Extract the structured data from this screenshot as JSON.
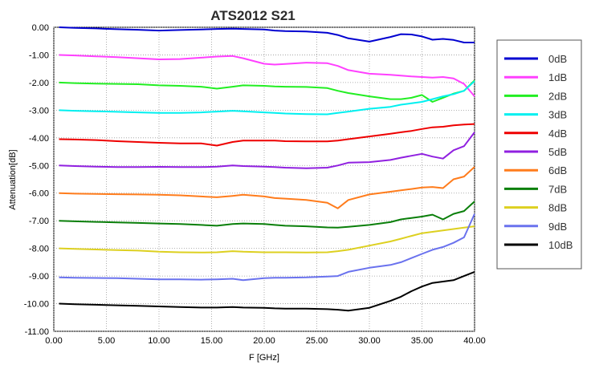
{
  "chart_data": {
    "type": "line",
    "title": "ATS2012 S21",
    "xlabel": "F [GHz]",
    "ylabel": "Attenuation[dB]",
    "xlim": [
      0,
      40
    ],
    "ylim": [
      -11,
      0
    ],
    "x_ticks": [
      "0.00",
      "5.00",
      "10.00",
      "15.00",
      "20.00",
      "25.00",
      "30.00",
      "35.00",
      "40.00"
    ],
    "y_ticks": [
      "0.00",
      "-1.00",
      "-2.00",
      "-3.00",
      "-4.00",
      "-5.00",
      "-6.00",
      "-7.00",
      "-8.00",
      "-9.00",
      "-10.00",
      "-11.00"
    ],
    "grid": true,
    "legend_position": "right",
    "x": [
      0.5,
      2,
      4,
      6,
      8,
      10,
      12,
      14,
      15.5,
      17,
      18,
      20,
      21,
      22,
      24,
      26,
      27,
      28,
      30,
      32,
      33,
      34,
      35,
      36,
      37,
      38,
      39,
      40
    ],
    "series": [
      {
        "name": "0dB",
        "color": "#0000d0",
        "values": [
          0,
          -0.02,
          -0.04,
          -0.07,
          -0.09,
          -0.12,
          -0.1,
          -0.08,
          -0.06,
          -0.05,
          -0.06,
          -0.08,
          -0.12,
          -0.14,
          -0.15,
          -0.2,
          -0.28,
          -0.4,
          -0.52,
          -0.35,
          -0.25,
          -0.26,
          -0.33,
          -0.45,
          -0.42,
          -0.46,
          -0.55,
          -0.55
        ]
      },
      {
        "name": "1dB",
        "color": "#ff40ff",
        "values": [
          -1,
          -1.02,
          -1.05,
          -1.08,
          -1.12,
          -1.16,
          -1.15,
          -1.1,
          -1.06,
          -1.04,
          -1.12,
          -1.32,
          -1.35,
          -1.33,
          -1.28,
          -1.3,
          -1.4,
          -1.55,
          -1.68,
          -1.72,
          -1.75,
          -1.78,
          -1.8,
          -1.82,
          -1.8,
          -1.85,
          -2.05,
          -2.5
        ]
      },
      {
        "name": "2dB",
        "color": "#22ee22",
        "values": [
          -2,
          -2.02,
          -2.04,
          -2.05,
          -2.06,
          -2.1,
          -2.12,
          -2.15,
          -2.22,
          -2.15,
          -2.1,
          -2.12,
          -2.14,
          -2.15,
          -2.16,
          -2.2,
          -2.3,
          -2.38,
          -2.5,
          -2.6,
          -2.6,
          -2.55,
          -2.45,
          -2.7,
          -2.55,
          -2.4,
          -2.3,
          -1.92
        ]
      },
      {
        "name": "3dB",
        "color": "#00f0f0",
        "values": [
          -3,
          -3.02,
          -3.04,
          -3.06,
          -3.08,
          -3.1,
          -3.1,
          -3.08,
          -3.05,
          -3.02,
          -3.04,
          -3.08,
          -3.1,
          -3.12,
          -3.14,
          -3.15,
          -3.1,
          -3.05,
          -2.95,
          -2.88,
          -2.8,
          -2.75,
          -2.7,
          -2.6,
          -2.5,
          -2.42,
          -2.3,
          -1.95
        ]
      },
      {
        "name": "4dB",
        "color": "#ee0000",
        "values": [
          -4.05,
          -4.06,
          -4.08,
          -4.12,
          -4.15,
          -4.18,
          -4.2,
          -4.2,
          -4.28,
          -4.15,
          -4.1,
          -4.1,
          -4.1,
          -4.12,
          -4.13,
          -4.13,
          -4.1,
          -4.05,
          -3.95,
          -3.85,
          -3.8,
          -3.75,
          -3.68,
          -3.62,
          -3.6,
          -3.55,
          -3.52,
          -3.5
        ]
      },
      {
        "name": "5dB",
        "color": "#9020e0",
        "values": [
          -5,
          -5.02,
          -5.04,
          -5.06,
          -5.06,
          -5.05,
          -5.06,
          -5.06,
          -5.04,
          -5.0,
          -5.02,
          -5.04,
          -5.06,
          -5.08,
          -5.1,
          -5.08,
          -5.0,
          -4.9,
          -4.88,
          -4.8,
          -4.72,
          -4.65,
          -4.58,
          -4.68,
          -4.75,
          -4.45,
          -4.3,
          -3.8
        ]
      },
      {
        "name": "6dB",
        "color": "#ff7c1c",
        "values": [
          -6,
          -6.02,
          -6.03,
          -6.04,
          -6.05,
          -6.06,
          -6.08,
          -6.12,
          -6.15,
          -6.1,
          -6.06,
          -6.12,
          -6.18,
          -6.2,
          -6.25,
          -6.35,
          -6.55,
          -6.25,
          -6.05,
          -5.95,
          -5.9,
          -5.85,
          -5.8,
          -5.78,
          -5.82,
          -5.5,
          -5.4,
          -5.05
        ]
      },
      {
        "name": "7dB",
        "color": "#0a7f0a",
        "values": [
          -7,
          -7.02,
          -7.04,
          -7.06,
          -7.08,
          -7.1,
          -7.12,
          -7.15,
          -7.18,
          -7.12,
          -7.1,
          -7.12,
          -7.15,
          -7.18,
          -7.2,
          -7.24,
          -7.25,
          -7.22,
          -7.15,
          -7.05,
          -6.95,
          -6.9,
          -6.85,
          -6.78,
          -6.95,
          -6.75,
          -6.65,
          -6.3
        ]
      },
      {
        "name": "8dB",
        "color": "#ddd020",
        "values": [
          -8,
          -8.02,
          -8.04,
          -8.06,
          -8.08,
          -8.12,
          -8.14,
          -8.15,
          -8.14,
          -8.1,
          -8.12,
          -8.14,
          -8.14,
          -8.14,
          -8.15,
          -8.14,
          -8.1,
          -8.05,
          -7.9,
          -7.75,
          -7.65,
          -7.55,
          -7.45,
          -7.4,
          -7.35,
          -7.3,
          -7.25,
          -7.2
        ]
      },
      {
        "name": "9dB",
        "color": "#6a72ee",
        "values": [
          -9.05,
          -9.06,
          -9.07,
          -9.08,
          -9.1,
          -9.12,
          -9.12,
          -9.13,
          -9.12,
          -9.1,
          -9.15,
          -9.08,
          -9.06,
          -9.06,
          -9.05,
          -9.02,
          -9.0,
          -8.85,
          -8.7,
          -8.6,
          -8.5,
          -8.35,
          -8.2,
          -8.05,
          -7.95,
          -7.8,
          -7.6,
          -6.75
        ]
      },
      {
        "name": "10dB",
        "color": "#000000",
        "values": [
          -10,
          -10.02,
          -10.04,
          -10.06,
          -10.08,
          -10.1,
          -10.12,
          -10.14,
          -10.14,
          -10.12,
          -10.14,
          -10.15,
          -10.17,
          -10.18,
          -10.18,
          -10.2,
          -10.22,
          -10.25,
          -10.15,
          -9.9,
          -9.75,
          -9.55,
          -9.38,
          -9.25,
          -9.2,
          -9.15,
          -9.0,
          -8.85
        ]
      }
    ]
  }
}
